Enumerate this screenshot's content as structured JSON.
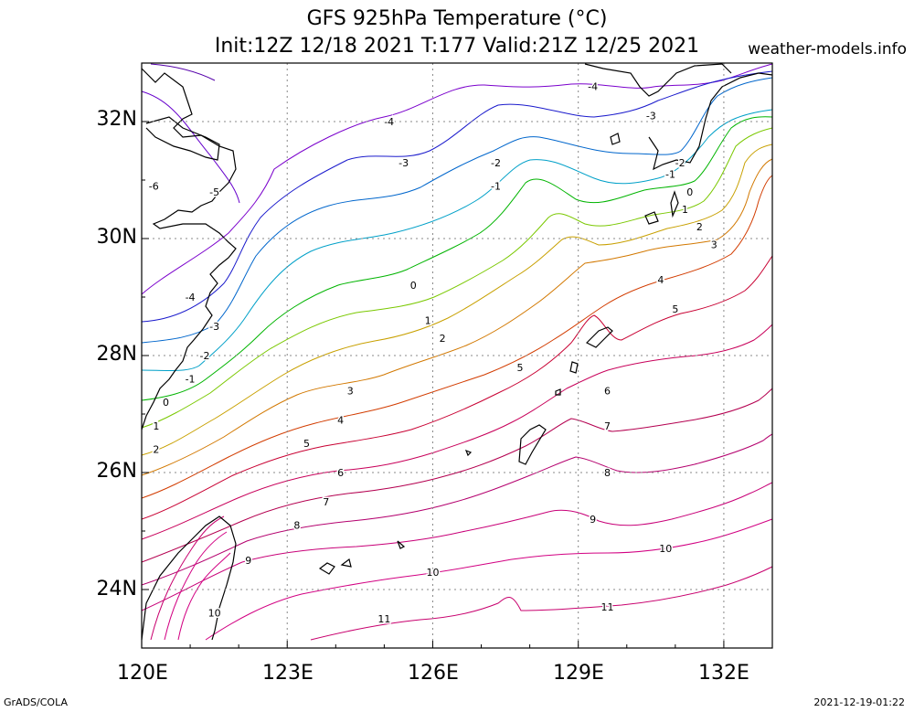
{
  "title": "GFS 925hPa Temperature (°C)",
  "subtitle": "Init:12Z 12/18 2021 T:177 Valid:21Z 12/25 2021",
  "site": "weather-models.info",
  "footer_left": "GrADS/COLA",
  "footer_right": "2021-12-19-01:22",
  "lat_labels": [
    "32N",
    "30N",
    "28N",
    "26N",
    "24N"
  ],
  "lon_labels": [
    "120E",
    "123E",
    "126E",
    "129E",
    "132E"
  ],
  "map": {
    "lon_range": [
      120,
      133
    ],
    "lat_range": [
      23,
      33
    ],
    "grid_lons": [
      123,
      126,
      129,
      132
    ],
    "grid_lats": [
      24,
      26,
      28,
      30,
      32
    ],
    "contour_labels": [
      {
        "text": "-6",
        "lon": 120.25,
        "lat": 30.9
      },
      {
        "text": "-5",
        "lon": 121.5,
        "lat": 30.8
      },
      {
        "text": "-4",
        "lon": 121.0,
        "lat": 29.0
      },
      {
        "text": "-3",
        "lon": 121.5,
        "lat": 28.5
      },
      {
        "text": "-2",
        "lon": 121.3,
        "lat": 28.0
      },
      {
        "text": "-1",
        "lon": 121.0,
        "lat": 27.6
      },
      {
        "text": "0",
        "lon": 120.5,
        "lat": 27.2
      },
      {
        "text": "1",
        "lon": 120.3,
        "lat": 26.8
      },
      {
        "text": "2",
        "lon": 120.3,
        "lat": 26.4
      },
      {
        "text": "-4",
        "lon": 125.1,
        "lat": 32.0
      },
      {
        "text": "-3",
        "lon": 125.4,
        "lat": 31.3
      },
      {
        "text": "-2",
        "lon": 127.3,
        "lat": 31.3
      },
      {
        "text": "-1",
        "lon": 127.3,
        "lat": 30.9
      },
      {
        "text": "0",
        "lon": 125.6,
        "lat": 29.2
      },
      {
        "text": "1",
        "lon": 125.9,
        "lat": 28.6
      },
      {
        "text": "2",
        "lon": 126.2,
        "lat": 28.3
      },
      {
        "text": "3",
        "lon": 124.3,
        "lat": 27.4
      },
      {
        "text": "4",
        "lon": 124.1,
        "lat": 26.9
      },
      {
        "text": "5",
        "lon": 123.4,
        "lat": 26.5
      },
      {
        "text": "6",
        "lon": 124.1,
        "lat": 26.0
      },
      {
        "text": "7",
        "lon": 123.8,
        "lat": 25.5
      },
      {
        "text": "8",
        "lon": 123.2,
        "lat": 25.1
      },
      {
        "text": "9",
        "lon": 122.2,
        "lat": 24.5
      },
      {
        "text": "10",
        "lon": 121.5,
        "lat": 23.6
      },
      {
        "text": "10",
        "lon": 126.0,
        "lat": 24.3
      },
      {
        "text": "11",
        "lon": 125.0,
        "lat": 23.5
      },
      {
        "text": "-4",
        "lon": 129.3,
        "lat": 32.6
      },
      {
        "text": "-3",
        "lon": 130.5,
        "lat": 32.1
      },
      {
        "text": "-2",
        "lon": 131.1,
        "lat": 31.3
      },
      {
        "text": "-1",
        "lon": 130.9,
        "lat": 31.1
      },
      {
        "text": "0",
        "lon": 131.3,
        "lat": 30.8
      },
      {
        "text": "1",
        "lon": 131.2,
        "lat": 30.5
      },
      {
        "text": "2",
        "lon": 131.5,
        "lat": 30.2
      },
      {
        "text": "3",
        "lon": 131.8,
        "lat": 29.9
      },
      {
        "text": "4",
        "lon": 130.7,
        "lat": 29.3
      },
      {
        "text": "5",
        "lon": 131.0,
        "lat": 28.8
      },
      {
        "text": "5",
        "lon": 127.8,
        "lat": 27.8
      },
      {
        "text": "6",
        "lon": 129.6,
        "lat": 27.4
      },
      {
        "text": "7",
        "lon": 129.6,
        "lat": 26.8
      },
      {
        "text": "8",
        "lon": 129.6,
        "lat": 26.0
      },
      {
        "text": "9",
        "lon": 129.3,
        "lat": 25.2
      },
      {
        "text": "10",
        "lon": 130.8,
        "lat": 24.7
      },
      {
        "text": "11",
        "lon": 129.6,
        "lat": 23.7
      }
    ],
    "colors": {
      "t_m6": "#5500aa",
      "t_m5": "#6600cc",
      "t_m4": "#7a00cc",
      "t_m3": "#1a1acc",
      "t_m2": "#0066cc",
      "t_m1": "#00a0c8",
      "t_0": "#00b400",
      "t_1": "#7ac800",
      "t_2": "#c8a000",
      "t_3": "#d27800",
      "t_4": "#d23c00",
      "t_5": "#c80032",
      "t_6": "#c8005a",
      "t_7": "#b40050",
      "t_8": "#b4006e",
      "t_9": "#c80078",
      "t_10": "#d20082",
      "t_11": "#c8006e",
      "coast": "#000000",
      "grid": "#888888"
    }
  }
}
